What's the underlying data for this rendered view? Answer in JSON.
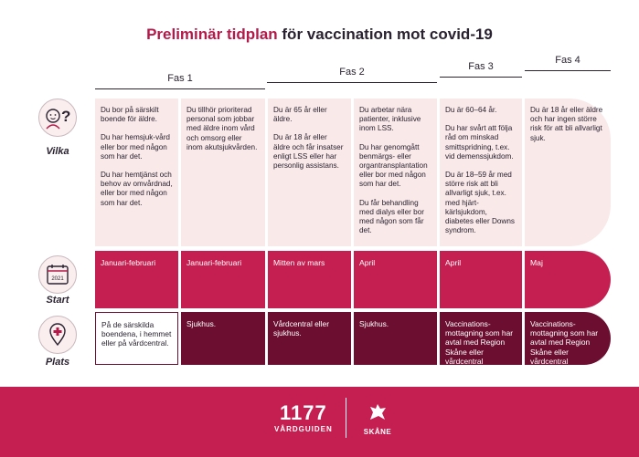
{
  "title": {
    "accent": "Preliminär tidplan",
    "rest": " för vaccination mot covid-19"
  },
  "phases": [
    "Fas 1",
    "Fas 2",
    "Fas 3",
    "Fas 4"
  ],
  "row_labels": {
    "vilka": "Vilka",
    "start": "Start",
    "plats": "Plats"
  },
  "calendar_year": "2021",
  "vilka": [
    [
      "Du bor på särskilt boende för äldre.",
      "Du har hemsjuk-vård eller bor med någon som har det.",
      "Du har hemtjänst och behov av omvårdnad, eller bor med någon som har det."
    ],
    [
      "Du tillhör prioriterad personal som jobbar med äldre inom vård och omsorg eller inom akutsjukvården."
    ],
    [
      "Du är 65 år eller äldre.",
      "Du är 18 år eller äldre och får insatser enligt LSS eller har personlig assistans."
    ],
    [
      "Du arbetar nära patienter, inklusive inom LSS.",
      "Du har genomgått benmärgs- eller organtransplantation eller bor med någon som har det.",
      "Du får behandling med dialys eller bor med någon som får det."
    ],
    [
      "Du är 60–64 år.",
      "Du har svårt att följa råd om minskad smittspridning, t.ex. vid demenssjukdom.",
      "Du är 18–59 år med större risk att bli allvarligt sjuk, t.ex. med hjärt-kärlsjukdom, diabetes eller Downs syndrom."
    ],
    [
      "Du är 18 år eller äldre och har ingen större risk för att bli allvarligt sjuk."
    ]
  ],
  "start": [
    "Januari-februari",
    "Januari-februari",
    "Mitten av mars",
    "April",
    "April",
    "Maj"
  ],
  "plats": [
    "På de särskilda boendena, i hemmet eller på vårdcentral.",
    "Sjukhus.",
    "Vårdcentral eller sjukhus.",
    "Sjukhus.",
    "Vaccinations-mottagning som har avtal med Region Skåne eller vårdcentral",
    "Vaccinations-mottagning som har avtal med Region Skåne eller vårdcentral"
  ],
  "footer": {
    "logo_number": "1177",
    "logo_sub": "VÅRDGUIDEN",
    "skane_text": "SKÅNE"
  },
  "colors": {
    "accent": "#c51f51",
    "dark": "#6b0e30",
    "light": "#f9e9e9"
  }
}
